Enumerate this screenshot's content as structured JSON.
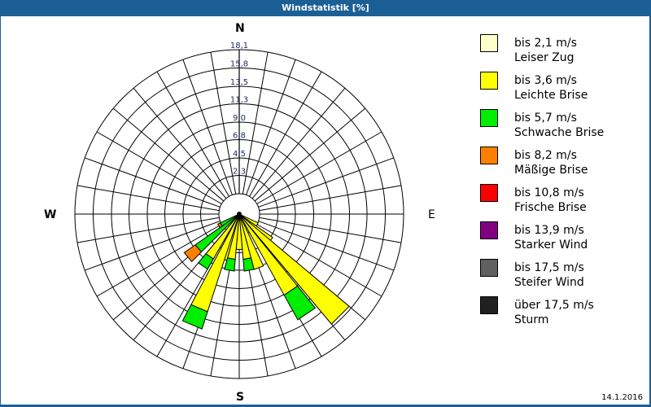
{
  "window": {
    "title": "Windstatistik [%]",
    "date": "14.1.2016"
  },
  "compass": {
    "n": "N",
    "e": "E",
    "s": "S",
    "w": "W"
  },
  "legend": [
    {
      "range": "bis 2,1 m/s",
      "label": "Leiser Zug",
      "color": "#ffffcc"
    },
    {
      "range": "bis 3,6 m/s",
      "label": "Leichte Brise",
      "color": "#ffff00"
    },
    {
      "range": "bis 5,7 m/s",
      "label": "Schwache Brise",
      "color": "#00ee00"
    },
    {
      "range": "bis 8,2 m/s",
      "label": "Mäßige Brise",
      "color": "#ff8000"
    },
    {
      "range": "bis 10,8 m/s",
      "label": "Frische Brise",
      "color": "#ff0000"
    },
    {
      "range": "bis 13,9 m/s",
      "label": "Starker Wind",
      "color": "#800080"
    },
    {
      "range": "bis 17,5 m/s",
      "label": "Steifer Wind",
      "color": "#606060"
    },
    {
      "range": "über 17,5 m/s",
      "label": "Sturm",
      "color": "#202020"
    }
  ],
  "chart_data": {
    "type": "wind-rose",
    "title": "Windstatistik [%]",
    "rmax": 18.1,
    "ring_labels": [
      "2,3",
      "4,5",
      "6,8",
      "9,0",
      "11,3",
      "13,5",
      "15,8",
      "18,1"
    ],
    "ring_values": [
      2.3,
      4.5,
      6.8,
      9.0,
      11.3,
      13.5,
      15.8,
      18.1
    ],
    "sector_width_deg": 10,
    "series_names": [
      "bis 2,1 m/s",
      "bis 3,6 m/s",
      "bis 5,7 m/s",
      "bis 8,2 m/s"
    ],
    "sectors": [
      {
        "bearing": 120,
        "cumulative": [
          0.5,
          2.3
        ]
      },
      {
        "bearing": 130,
        "cumulative": [
          1.5,
          4.5
        ]
      },
      {
        "bearing": 135,
        "cumulative": [
          0,
          15.8
        ]
      },
      {
        "bearing": 146,
        "cumulative": [
          0,
          10.2,
          13.3
        ]
      },
      {
        "bearing": 160,
        "cumulative": [
          0,
          6.3
        ]
      },
      {
        "bearing": 170,
        "cumulative": [
          0,
          5.0,
          6.3
        ]
      },
      {
        "bearing": 180,
        "cumulative": [
          0,
          3.9
        ]
      },
      {
        "bearing": 190,
        "cumulative": [
          0,
          5.0,
          6.3
        ]
      },
      {
        "bearing": 200,
        "cumulative": [
          0,
          5.3
        ]
      },
      {
        "bearing": 203,
        "cumulative": [
          0,
          11.3,
          13.3
        ]
      },
      {
        "bearing": 215,
        "cumulative": [
          0,
          5.7,
          7.0
        ]
      },
      {
        "bearing": 230,
        "cumulative": [
          0,
          0,
          5.9,
          7.4
        ]
      },
      {
        "bearing": 240,
        "cumulative": [
          0,
          0,
          2.3,
          2.6
        ]
      }
    ]
  }
}
